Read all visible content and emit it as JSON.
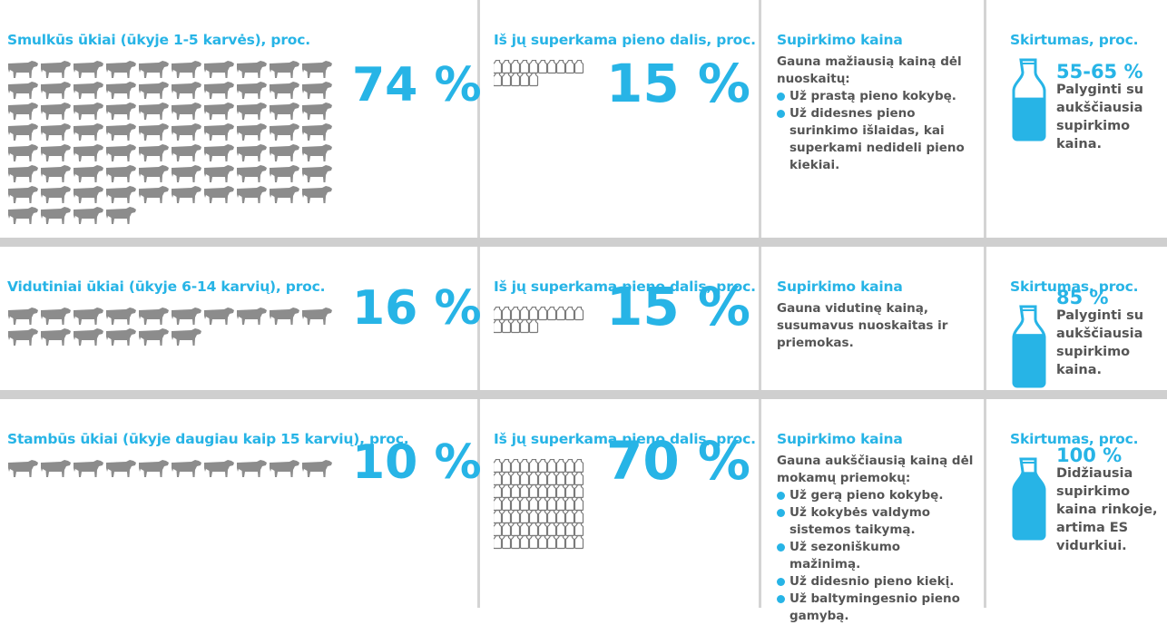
{
  "rows": [
    {
      "farm": {
        "title": "Smulkūs ūkiai (ūkyje 1-5 karvės), proc.",
        "share": {
          "value": 74,
          "label": "74 %"
        }
      },
      "milk": {
        "title": "Iš jų superkama pieno dalis, proc.",
        "share": {
          "value": 15,
          "label": "15 %"
        }
      },
      "price": {
        "title": "Supirkimo kaina",
        "text": "Gauna mažiausią kainą dėl nuoskaitų:",
        "bullets": [
          "Už prastą pieno kokybę.",
          "Už didesnes pieno surinkimo išlaidas, kai superkami nedideli pieno kiekiai."
        ]
      },
      "diff": {
        "title": "Skirtumas, proc.",
        "value": "55-65 %",
        "text": "Palyginti su aukščiausia supirkimo kaina."
      }
    },
    {
      "farm": {
        "title": "Vidutiniai ūkiai (ūkyje 6-14 karvių), proc.",
        "share": {
          "value": 16,
          "label": "16 %"
        }
      },
      "milk": {
        "title": "Iš jų superkama pieno dalis, proc.",
        "share": {
          "value": 15,
          "label": "15 %"
        }
      },
      "price": {
        "title": "Supirkimo kaina",
        "text": "Gauna vidutinę kainą, susumavus nuoskaitas ir priemokas.",
        "bullets": []
      },
      "diff": {
        "title": "Skirtumas, proc.",
        "value": "85 %",
        "text": "Palyginti su aukščiausia supirkimo kaina."
      }
    },
    {
      "farm": {
        "title": "Stambūs ūkiai (ūkyje daugiau kaip 15 karvių), proc.",
        "share": {
          "value": 10,
          "label": "10 %"
        }
      },
      "milk": {
        "title": "Iš jų superkama pieno dalis, proc.",
        "share": {
          "value": 70,
          "label": "70 %"
        }
      },
      "price": {
        "title": "Supirkimo kaina",
        "text": "Gauna aukščiausią kainą dėl mokamų priemokų:",
        "bullets": [
          "Už gerą pieno kokybę.",
          "Už kokybės valdymo sistemos taikymą.",
          "Už sezoniškumo mažinimą.",
          "Už didesnio pieno kiekį.",
          "Už baltymingesnio pieno gamybą."
        ]
      },
      "diff": {
        "title": "Skirtumas, proc.",
        "value": "100 %",
        "text": "Didžiausia supirkimo kaina rinkoje, artima ES vidurkiui."
      }
    }
  ]
}
